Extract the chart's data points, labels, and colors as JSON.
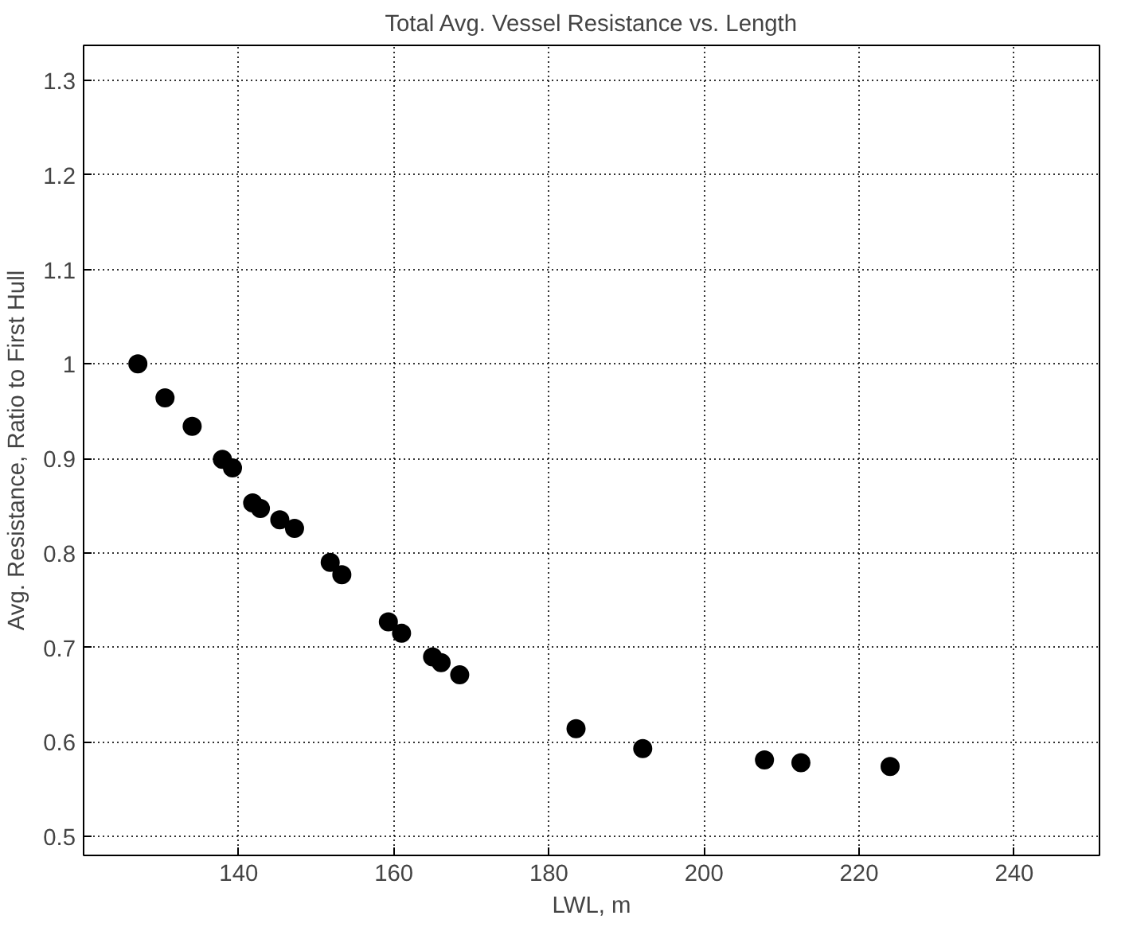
{
  "chart_data": {
    "type": "scatter",
    "title": "Total Avg. Vessel Resistance vs. Length",
    "xlabel": "LWL, m",
    "ylabel": "Avg. Resistance, Ratio to First Hull",
    "x": [
      127.0,
      130.5,
      134.0,
      137.9,
      139.2,
      141.8,
      142.8,
      143.7,
      144.5,
      145.3,
      147.2,
      151.8,
      153.3,
      159.3,
      161.0,
      165.0,
      166.1,
      168.5,
      183.5,
      192.1,
      207.8,
      212.5,
      224.0
    ],
    "values": [
      1.0,
      0.964,
      0.934,
      0.899,
      0.89,
      0.853,
      0.847,
      null,
      null,
      0.835,
      0.826,
      0.79,
      0.777,
      0.727,
      0.715,
      0.69,
      0.684,
      0.671,
      0.614,
      0.593,
      0.581,
      0.578,
      0.574
    ],
    "color": "#000000",
    "marker": "circle",
    "grid": true,
    "xlim": [
      120,
      251
    ],
    "xticks": [
      140,
      160,
      180,
      200,
      220,
      240
    ],
    "ylim": [
      0.48,
      1.337
    ],
    "yticks": [
      0.5,
      0.6,
      0.7,
      0.8,
      0.9,
      1,
      1.1,
      1.2,
      1.3
    ]
  }
}
